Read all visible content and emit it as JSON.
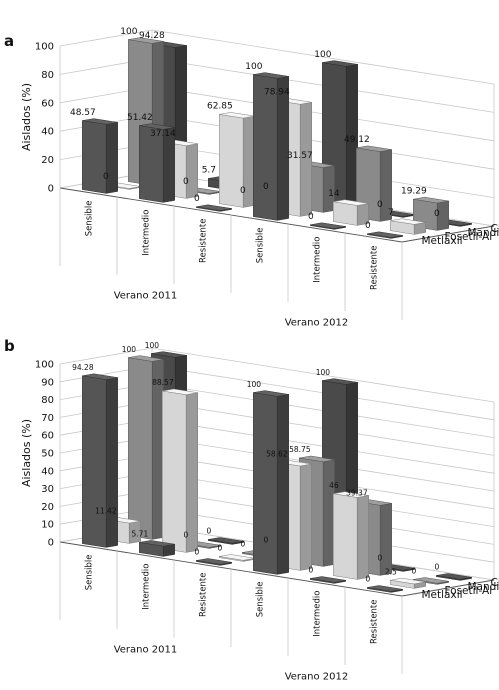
{
  "chart_data": [
    {
      "type": "bar",
      "panel": "a",
      "ylabel": "Aislados (%)",
      "ylim": [
        0,
        100
      ],
      "yticks": [
        0,
        20,
        40,
        60,
        80,
        100
      ],
      "categories": [
        "Sensible",
        "Intermedio",
        "Resistente",
        "Sensible",
        "Intermedio",
        "Resistente"
      ],
      "groups": [
        {
          "label": "Verano 2011",
          "categories": [
            "Sensible",
            "Intermedio",
            "Resistente"
          ]
        },
        {
          "label": "Verano 2012",
          "categories": [
            "Sensible",
            "Intermedio",
            "Resistente"
          ]
        }
      ],
      "series": [
        {
          "name": "Metlaxil",
          "values": [
            48.57,
            51.42,
            0,
            100,
            0,
            0
          ],
          "labels": [
            "48.57",
            "51.42",
            "0",
            "100",
            "0",
            "0"
          ],
          "color": "#555555"
        },
        {
          "name": "Fosetil-Al",
          "values": [
            0,
            37.14,
            62.85,
            78.94,
            14,
            7
          ],
          "labels": [
            "0",
            "37.14",
            "62.85",
            "78.94",
            "14",
            "7"
          ],
          "color": "#d6d6d6"
        },
        {
          "name": "Mandipropamida",
          "values": [
            100,
            0,
            0,
            31.57,
            49.12,
            19.29
          ],
          "labels": [
            "100",
            "0",
            "0",
            "31.57",
            "49.12",
            "19.29"
          ],
          "color": "#8a8a8a"
        },
        {
          "name": "Ciazofamida",
          "values": [
            94.28,
            5.7,
            0,
            100,
            0,
            0
          ],
          "labels": [
            "94.28",
            "5.7",
            "0",
            "100",
            "0",
            "0"
          ],
          "color": "#4a4a4a"
        }
      ]
    },
    {
      "type": "bar",
      "panel": "b",
      "ylabel": "Aislados (%)",
      "ylim": [
        0,
        100
      ],
      "yticks": [
        0,
        10,
        20,
        30,
        40,
        50,
        60,
        70,
        80,
        90,
        100
      ],
      "categories": [
        "Sensible",
        "Intermedio",
        "Resistente",
        "Sensible",
        "Intermedio",
        "Resistente"
      ],
      "groups": [
        {
          "label": "Verano 2011",
          "categories": [
            "Sensible",
            "Intermedio",
            "Resistente"
          ]
        },
        {
          "label": "Verano 2012",
          "categories": [
            "Sensible",
            "Intermedio",
            "Resistente"
          ]
        }
      ],
      "series": [
        {
          "name": "Metlaxil",
          "values": [
            94.28,
            5.71,
            0,
            100,
            0,
            0
          ],
          "labels": [
            "94.28",
            "5.71",
            "0",
            "100",
            "0",
            "0"
          ],
          "color": "#555555"
        },
        {
          "name": "Fosetil-Al",
          "values": [
            11.42,
            88.57,
            0,
            58.62,
            46,
            2.5
          ],
          "labels": [
            "11.42",
            "88.57",
            "0",
            "58.62",
            "46",
            "2.5"
          ],
          "color": "#d6d6d6"
        },
        {
          "name": "Mandipropamida",
          "values": [
            100,
            0,
            0,
            58.75,
            39.37,
            0
          ],
          "labels": [
            "100",
            "0",
            "0",
            "58.75",
            "39.37",
            "0"
          ],
          "color": "#8a8a8a"
        },
        {
          "name": "Ciazofamida",
          "values": [
            100,
            0,
            0,
            100,
            0,
            0
          ],
          "labels": [
            "100",
            "0",
            "0",
            "100",
            "0",
            "0"
          ],
          "color": "#4a4a4a"
        }
      ]
    }
  ]
}
